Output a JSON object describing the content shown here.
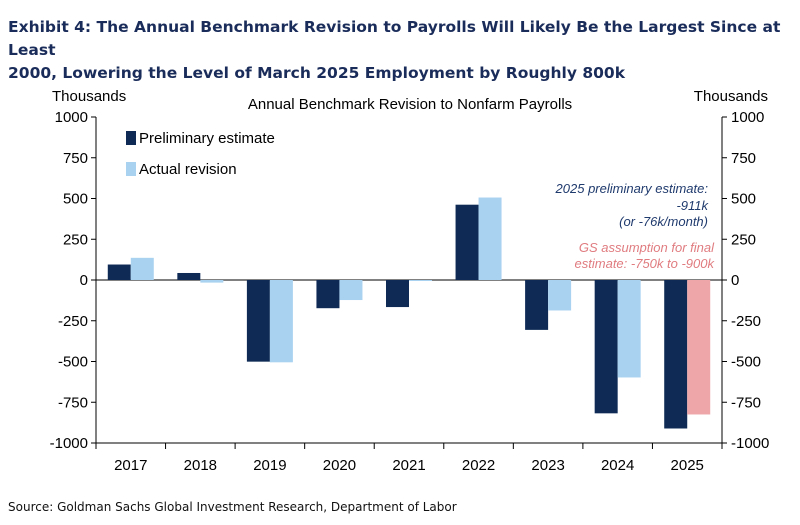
{
  "header": {
    "title_line1": "Exhibit 4: The Annual Benchmark Revision to Payrolls Will Likely Be the Largest Since at Least",
    "title_line2": "2000, Lowering the Level of March 2025 Employment by Roughly 800k"
  },
  "footer": {
    "source": "Source: Goldman Sachs Global Investment Research, Department of Labor"
  },
  "colors": {
    "preliminary": "#0e2a55",
    "actual": "#a9d2f1",
    "assumption": "#efa6a9",
    "annotation_blue": "#1f3a6d",
    "annotation_red": "#e07c80"
  },
  "chart_data": {
    "type": "bar",
    "title": "Annual Benchmark Revision to Nonfarm Payrolls",
    "ylabel_left": "Thousands",
    "ylabel_right": "Thousands",
    "ylim": [
      -1000,
      1000
    ],
    "yticks": [
      1000,
      750,
      500,
      250,
      0,
      -250,
      -500,
      -750,
      -1000
    ],
    "categories": [
      "2017",
      "2018",
      "2019",
      "2020",
      "2021",
      "2022",
      "2023",
      "2024",
      "2025"
    ],
    "series": [
      {
        "name": "Preliminary estimate",
        "values": [
          95,
          43,
          -501,
          -173,
          -166,
          462,
          -306,
          -818,
          -911
        ]
      },
      {
        "name": "Actual revision",
        "values": [
          136,
          -16,
          -505,
          -123,
          -6,
          506,
          -187,
          -598,
          -825
        ]
      }
    ],
    "legend": [
      "Preliminary estimate",
      "Actual revision"
    ],
    "annotations": {
      "preliminary_2025": [
        "2025 preliminary estimate:",
        "-911k",
        "(or -76k/month)"
      ],
      "gs_assumption": [
        "GS assumption for final",
        "estimate: -750k to -900k"
      ]
    }
  }
}
